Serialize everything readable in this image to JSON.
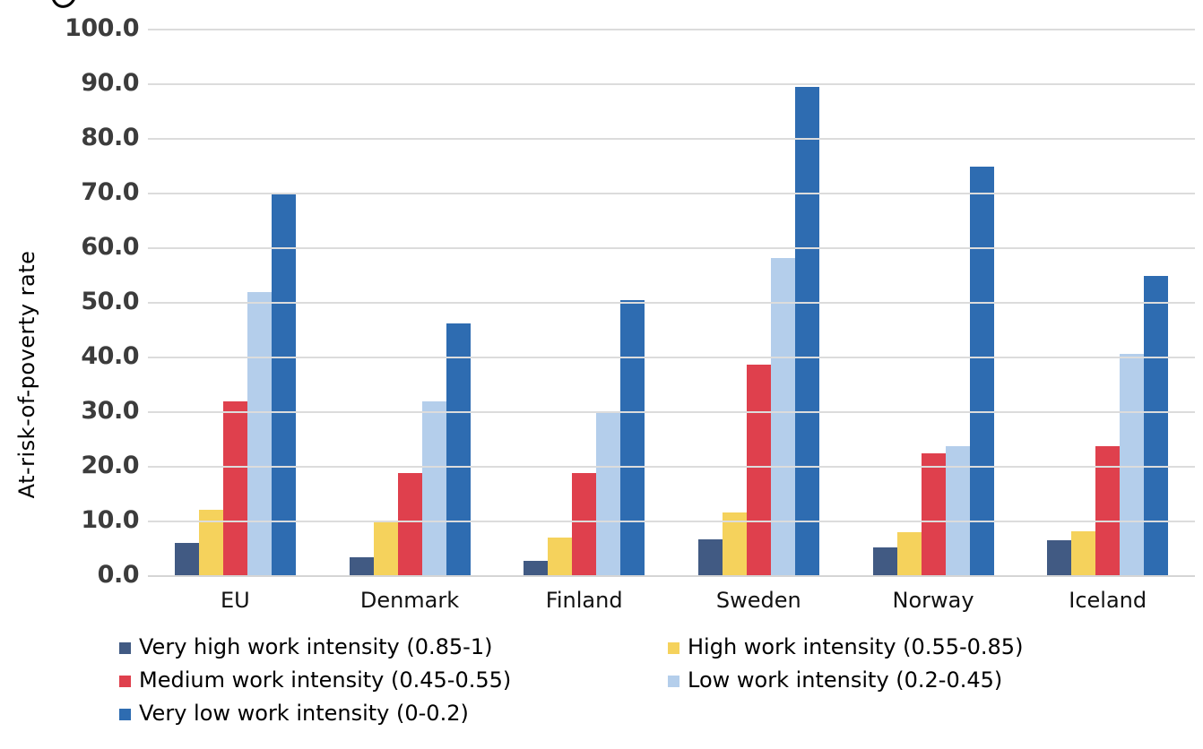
{
  "chart_data": {
    "type": "bar",
    "title": "",
    "ylabel": "At-risk-of-poverty rate",
    "xlabel": "",
    "ylim": [
      0,
      100
    ],
    "y_ticks": [
      0,
      10,
      20,
      30,
      40,
      50,
      60,
      70,
      80,
      90,
      100
    ],
    "y_tick_labels": [
      "0.0",
      "10.0",
      "20.0",
      "30.0",
      "40.0",
      "50.0",
      "60.0",
      "70.0",
      "80.0",
      "90.0",
      "100.0"
    ],
    "grid": "horizontal",
    "legend_position": "bottom-two-columns",
    "categories": [
      "EU",
      "Denmark",
      "Finland",
      "Sweden",
      "Norway",
      "Iceland"
    ],
    "series": [
      {
        "name": "Very high work intensity (0.85-1)",
        "color": "#415a83",
        "values": [
          6.1,
          3.4,
          2.8,
          6.8,
          5.2,
          6.5
        ]
      },
      {
        "name": "High work intensity (0.55-0.85)",
        "color": "#f5d25c",
        "values": [
          12.2,
          9.8,
          7.1,
          11.7,
          8.1,
          8.2
        ]
      },
      {
        "name": "Medium work intensity (0.45-0.55)",
        "color": "#df404d",
        "values": [
          32.0,
          18.8,
          18.8,
          38.7,
          22.5,
          23.7
        ]
      },
      {
        "name": "Low work intensity (0.2-0.45)",
        "color": "#b4ceeb",
        "values": [
          52.0,
          31.9,
          30.1,
          58.2,
          23.8,
          40.6
        ]
      },
      {
        "name": "Very low work intensity (0-0.2)",
        "color": "#2e6cb1",
        "values": [
          70.2,
          46.3,
          50.5,
          89.5,
          75.0,
          55.0
        ]
      }
    ],
    "colors": {
      "gridline": "#dcdcdc",
      "tick_text": "#3c3c3c",
      "category_text": "#111111",
      "background": "#ffffff"
    }
  }
}
